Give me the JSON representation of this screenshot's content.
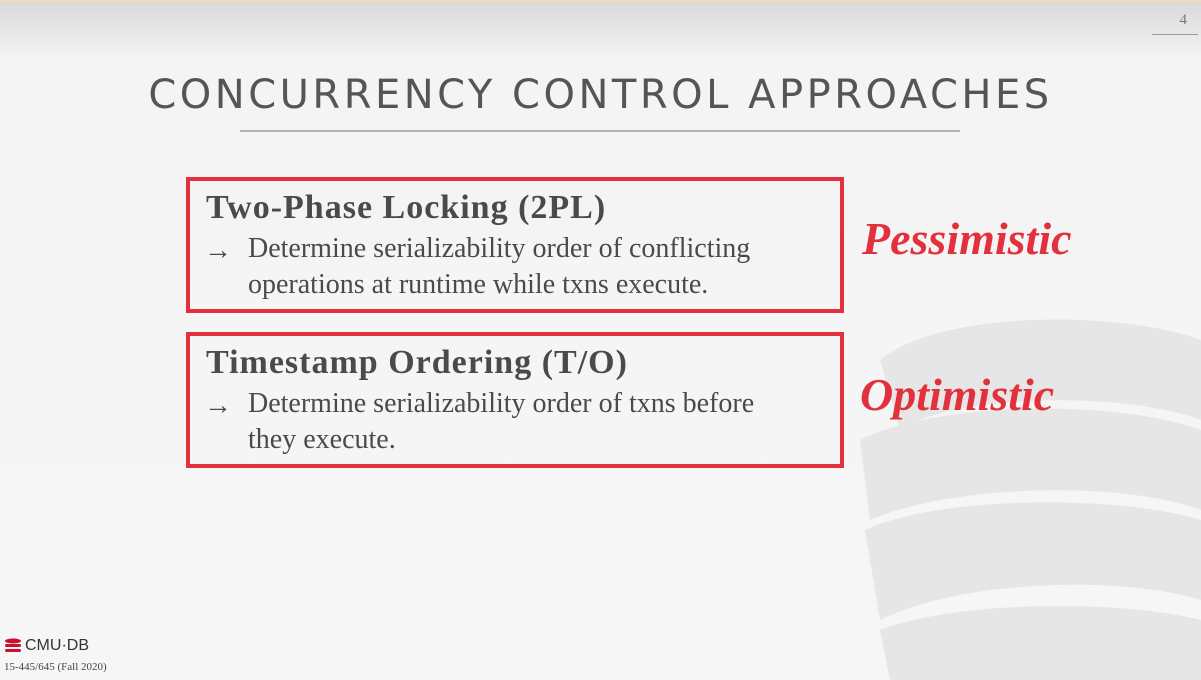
{
  "slide": {
    "number": "4",
    "title": "CONCURRENCY CONTROL APPROACHES"
  },
  "approaches": [
    {
      "heading": "Two-Phase Locking (2PL)",
      "arrow": "→",
      "line1": "Determine serializability order of conflicting",
      "line2": "operations at runtime while txns execute.",
      "tag": "Pessimistic"
    },
    {
      "heading": "Timestamp Ordering (T/O)",
      "arrow": "→",
      "line1": "Determine serializability order of txns before",
      "line2": "they execute.",
      "tag": "Optimistic"
    }
  ],
  "footer": {
    "logo_text": "CMU·DB",
    "course": "15-445/645 (Fall 2020)"
  },
  "colors": {
    "accent": "#e3303d",
    "text": "#4a4a4a"
  }
}
